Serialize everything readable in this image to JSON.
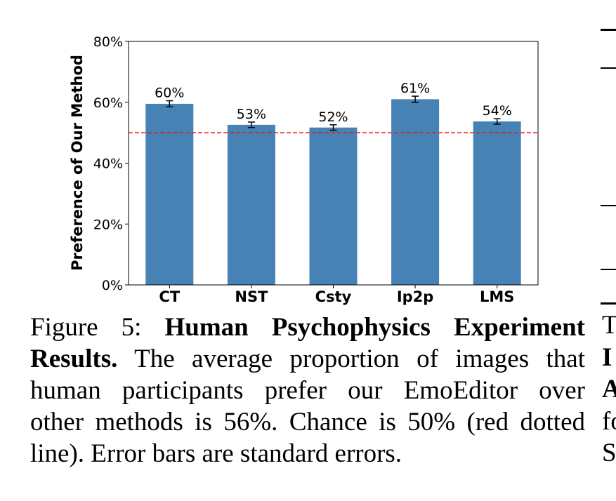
{
  "chart_data": {
    "type": "bar",
    "categories": [
      "CT",
      "NST",
      "Csty",
      "Ip2p",
      "LMS"
    ],
    "values": [
      59.5,
      52.6,
      51.7,
      61.0,
      53.7
    ],
    "errors": [
      1.0,
      0.9,
      0.9,
      1.0,
      0.9
    ],
    "data_labels": [
      "60%",
      "53%",
      "52%",
      "61%",
      "54%"
    ],
    "ylabel": "Preference of Our Method",
    "ylim": [
      0,
      80
    ],
    "yticks": [
      "0%",
      "20%",
      "40%",
      "60%",
      "80%"
    ],
    "ytick_values": [
      0,
      20,
      40,
      60,
      80
    ],
    "reference_line": {
      "value": 50,
      "color": "#e8191c",
      "style": "dashed"
    },
    "bar_color": "#4682b4",
    "grid": false
  },
  "caption": {
    "prefix": "Figure 5: ",
    "bold_title": "Human Psychophysics Experiment Results.",
    "line1_prefix": "Figure 5: ",
    "line1_bold": "Human Psychophysics Experiment",
    "line2_bold": "Results.",
    "line2_rest": " The average proportion of images that",
    "line3": "human participants prefer our EmoEditor over",
    "line4": "other methods is 56%. Chance is 50% (red dotted",
    "line5": "line). Error bars are standard errors."
  },
  "right_column": {
    "fragments": [
      {
        "text": "T",
        "bold": false
      },
      {
        "text": "I",
        "bold": true
      },
      {
        "text": "A",
        "bold": true
      },
      {
        "text": "fo",
        "bold": false
      },
      {
        "text": "S",
        "bold": false
      }
    ]
  }
}
